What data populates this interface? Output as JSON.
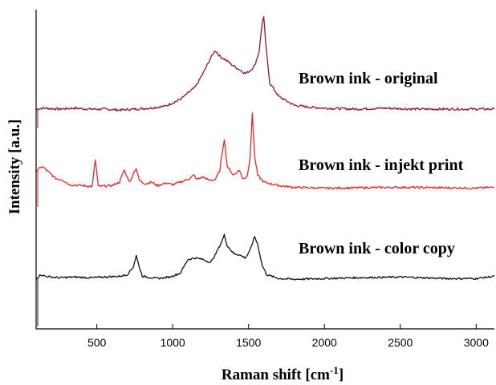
{
  "chart_data": {
    "type": "line",
    "title": "",
    "xlabel": "Raman shift [cm",
    "xlabel_sup": "-1",
    "xlabel_end": "]",
    "ylabel": "Intensity [a.u.]",
    "xlim": [
      100,
      3120
    ],
    "xticks": [
      "500",
      "1000",
      "1500",
      "2000",
      "2500",
      "3000"
    ],
    "xtick_values": [
      500,
      1000,
      1500,
      2000,
      2500,
      3000
    ],
    "y_ticks_shown": false,
    "grid": false,
    "series": [
      {
        "name": "Brown ink - original",
        "color": "#8b1a2b",
        "points": [
          [
            100,
            0.05
          ],
          [
            150,
            0.06
          ],
          [
            250,
            0.05
          ],
          [
            350,
            0.06
          ],
          [
            450,
            0.05
          ],
          [
            550,
            0.05
          ],
          [
            650,
            0.04
          ],
          [
            750,
            0.05
          ],
          [
            850,
            0.06
          ],
          [
            950,
            0.08
          ],
          [
            1050,
            0.15
          ],
          [
            1150,
            0.28
          ],
          [
            1200,
            0.42
          ],
          [
            1250,
            0.58
          ],
          [
            1280,
            0.66
          ],
          [
            1310,
            0.6
          ],
          [
            1350,
            0.56
          ],
          [
            1400,
            0.5
          ],
          [
            1450,
            0.45
          ],
          [
            1480,
            0.42
          ],
          [
            1510,
            0.45
          ],
          [
            1540,
            0.5
          ],
          [
            1570,
            0.65
          ],
          [
            1590,
            0.95
          ],
          [
            1600,
            1.0
          ],
          [
            1615,
            0.7
          ],
          [
            1640,
            0.32
          ],
          [
            1700,
            0.18
          ],
          [
            1800,
            0.09
          ],
          [
            1900,
            0.07
          ],
          [
            2000,
            0.06
          ],
          [
            2200,
            0.05
          ],
          [
            2400,
            0.06
          ],
          [
            2600,
            0.05
          ],
          [
            2800,
            0.05
          ],
          [
            3000,
            0.05
          ],
          [
            3120,
            0.05
          ]
        ]
      },
      {
        "name": "Brown ink - injekt print",
        "color": "#e8262b",
        "points": [
          [
            100,
            0.25
          ],
          [
            140,
            0.3
          ],
          [
            180,
            0.24
          ],
          [
            230,
            0.16
          ],
          [
            270,
            0.15
          ],
          [
            320,
            0.09
          ],
          [
            400,
            0.08
          ],
          [
            470,
            0.07
          ],
          [
            490,
            0.38
          ],
          [
            510,
            0.07
          ],
          [
            600,
            0.08
          ],
          [
            650,
            0.12
          ],
          [
            680,
            0.26
          ],
          [
            700,
            0.18
          ],
          [
            720,
            0.12
          ],
          [
            740,
            0.22
          ],
          [
            760,
            0.28
          ],
          [
            780,
            0.14
          ],
          [
            820,
            0.1
          ],
          [
            860,
            0.12
          ],
          [
            900,
            0.08
          ],
          [
            960,
            0.11
          ],
          [
            1000,
            0.09
          ],
          [
            1050,
            0.12
          ],
          [
            1100,
            0.15
          ],
          [
            1140,
            0.2
          ],
          [
            1160,
            0.15
          ],
          [
            1200,
            0.18
          ],
          [
            1240,
            0.14
          ],
          [
            1280,
            0.15
          ],
          [
            1310,
            0.25
          ],
          [
            1340,
            0.62
          ],
          [
            1360,
            0.3
          ],
          [
            1400,
            0.2
          ],
          [
            1440,
            0.26
          ],
          [
            1460,
            0.16
          ],
          [
            1490,
            0.18
          ],
          [
            1510,
            0.4
          ],
          [
            1525,
            0.92
          ],
          [
            1540,
            0.42
          ],
          [
            1560,
            0.2
          ],
          [
            1600,
            0.12
          ],
          [
            1700,
            0.08
          ],
          [
            1800,
            0.06
          ],
          [
            2000,
            0.05
          ],
          [
            2500,
            0.06
          ],
          [
            3000,
            0.05
          ],
          [
            3120,
            0.06
          ]
        ]
      },
      {
        "name": "Brown ink - color copy",
        "color": "#111111",
        "points": [
          [
            100,
            0.05
          ],
          [
            130,
            0.1
          ],
          [
            160,
            0.08
          ],
          [
            250,
            0.06
          ],
          [
            350,
            0.07
          ],
          [
            450,
            0.06
          ],
          [
            550,
            0.07
          ],
          [
            650,
            0.08
          ],
          [
            700,
            0.1
          ],
          [
            740,
            0.2
          ],
          [
            760,
            0.35
          ],
          [
            780,
            0.2
          ],
          [
            800,
            0.08
          ],
          [
            900,
            0.05
          ],
          [
            980,
            0.07
          ],
          [
            1050,
            0.12
          ],
          [
            1100,
            0.3
          ],
          [
            1150,
            0.32
          ],
          [
            1200,
            0.3
          ],
          [
            1250,
            0.26
          ],
          [
            1280,
            0.36
          ],
          [
            1320,
            0.52
          ],
          [
            1340,
            0.62
          ],
          [
            1360,
            0.48
          ],
          [
            1400,
            0.38
          ],
          [
            1440,
            0.36
          ],
          [
            1480,
            0.32
          ],
          [
            1510,
            0.42
          ],
          [
            1540,
            0.6
          ],
          [
            1560,
            0.5
          ],
          [
            1590,
            0.22
          ],
          [
            1620,
            0.1
          ],
          [
            1700,
            0.05
          ],
          [
            1800,
            0.04
          ],
          [
            2000,
            0.05
          ],
          [
            2200,
            0.06
          ],
          [
            2500,
            0.07
          ],
          [
            2800,
            0.05
          ],
          [
            3000,
            0.05
          ],
          [
            3120,
            0.08
          ]
        ]
      }
    ]
  }
}
